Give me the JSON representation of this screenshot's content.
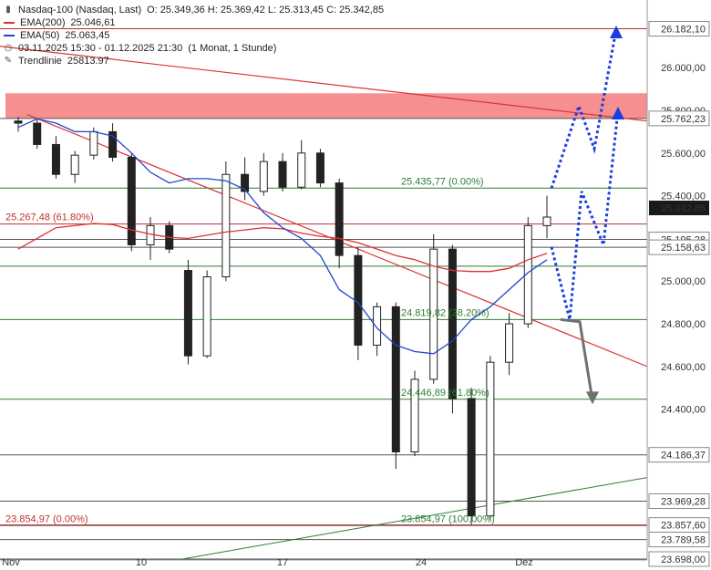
{
  "header": {
    "instrument": "Nasdaq-100 (Nasdaq, Last)",
    "ohlc": "O: 25.349,36  H: 25.369,42  L: 25.313,45  C: 25.342,85"
  },
  "legend": [
    {
      "label": "EMA(200)",
      "value": "25.046,61",
      "color": "#e03030",
      "icon": "line-swatch-icon"
    },
    {
      "label": "EMA(50)",
      "value": "25.063,45",
      "color": "#2244cc",
      "icon": "line-swatch-icon"
    },
    {
      "label": "03.11.2025 15:30 - 01.12.2025 21:30",
      "value": "(1 Monat, 1 Stunde)",
      "color": "#555555",
      "icon": "clock-icon"
    },
    {
      "label": "Trendlinie",
      "value": "25813.97",
      "color": "#555555",
      "icon": "pencil-icon"
    }
  ],
  "chart_data": {
    "type": "candlestick",
    "ylim": [
      23698,
      26240
    ],
    "x_ticks": [
      "Nov",
      "10",
      "17",
      "24",
      "Dez"
    ],
    "y_ticks": [
      "26.000,00",
      "25.800,00",
      "25.600,00",
      "25.400,00",
      "25.000,00",
      "24.800,00",
      "24.600,00",
      "24.400,00"
    ],
    "price_badge": "25.342,85",
    "horizontal_levels": [
      {
        "value": 26182.1,
        "label": "26.182,10",
        "color": "#b03030"
      },
      {
        "value": 25762.23,
        "label": "25.762,23",
        "color": "#555555"
      },
      {
        "value": 25435.77,
        "label": "",
        "color": "#2e7d32"
      },
      {
        "value": 25267.48,
        "label": "",
        "color": "#c03030"
      },
      {
        "value": 25195.28,
        "label": "25.195,28",
        "color": "#555555"
      },
      {
        "value": 25158.63,
        "label": "25.158,63",
        "color": "#555555"
      },
      {
        "value": 25070,
        "label": "",
        "color": "#2e7d32"
      },
      {
        "value": 24819.82,
        "label": "",
        "color": "#2e7d32"
      },
      {
        "value": 24446.89,
        "label": "",
        "color": "#2e7d32"
      },
      {
        "value": 24186.37,
        "label": "24.186,37",
        "color": "#555555"
      },
      {
        "value": 23969.28,
        "label": "23.969,28",
        "color": "#555555"
      },
      {
        "value": 23857.6,
        "label": "23.857,60",
        "color": "#555555"
      },
      {
        "value": 23854.97,
        "label": "",
        "color": "#c03030"
      },
      {
        "value": 23789.58,
        "label": "23.789,58",
        "color": "#555555"
      },
      {
        "value": 23698,
        "label": "23.698,00",
        "color": "#555555"
      }
    ],
    "annotations": [
      {
        "text": "25.435,77 (0.00%)",
        "color": "#2e7d32"
      },
      {
        "text": "25.267,48 (61.80%)",
        "color": "#c03030"
      },
      {
        "text": "24.819,82 (38.20%)",
        "color": "#2e7d32"
      },
      {
        "text": "24.446,89 (61.80%)",
        "color": "#2e7d32"
      },
      {
        "text": "23.854,97 (0.00%)",
        "color": "#c03030"
      },
      {
        "text": "23.854,97 (100.00%)",
        "color": "#2e7d32"
      }
    ],
    "resistance_zone": {
      "from": 25762,
      "to": 25880,
      "color": "#f47c7c"
    },
    "ema200": [
      25150,
      25200,
      25250,
      25260,
      25270,
      25265,
      25240,
      25220,
      25205,
      25200,
      25215,
      25230,
      25240,
      25250,
      25245,
      25225,
      25210,
      25200,
      25180,
      25150,
      25120,
      25100,
      25070,
      25050,
      25045,
      25045,
      25060,
      25100,
      25130
    ],
    "ema50": [
      25720,
      25760,
      25740,
      25700,
      25700,
      25680,
      25600,
      25510,
      25460,
      25480,
      25480,
      25470,
      25430,
      25320,
      25250,
      25200,
      25120,
      24960,
      24900,
      24780,
      24700,
      24670,
      24660,
      24720,
      24820,
      24880,
      24960,
      25040,
      25100
    ],
    "candles": [
      {
        "o": 25750,
        "h": 25770,
        "l": 25700,
        "c": 25740
      },
      {
        "o": 25740,
        "h": 25760,
        "l": 25620,
        "c": 25640
      },
      {
        "o": 25640,
        "h": 25680,
        "l": 25480,
        "c": 25500
      },
      {
        "o": 25500,
        "h": 25610,
        "l": 25460,
        "c": 25590
      },
      {
        "o": 25590,
        "h": 25720,
        "l": 25570,
        "c": 25700
      },
      {
        "o": 25700,
        "h": 25740,
        "l": 25560,
        "c": 25580
      },
      {
        "o": 25580,
        "h": 25600,
        "l": 25140,
        "c": 25170
      },
      {
        "o": 25170,
        "h": 25300,
        "l": 25100,
        "c": 25260
      },
      {
        "o": 25260,
        "h": 25280,
        "l": 25130,
        "c": 25150
      },
      {
        "o": 25050,
        "h": 25100,
        "l": 24610,
        "c": 24650
      },
      {
        "o": 24650,
        "h": 25050,
        "l": 24640,
        "c": 25020
      },
      {
        "o": 25020,
        "h": 25560,
        "l": 25000,
        "c": 25500
      },
      {
        "o": 25500,
        "h": 25580,
        "l": 25380,
        "c": 25420
      },
      {
        "o": 25420,
        "h": 25600,
        "l": 25400,
        "c": 25560
      },
      {
        "o": 25560,
        "h": 25600,
        "l": 25420,
        "c": 25440
      },
      {
        "o": 25440,
        "h": 25660,
        "l": 25430,
        "c": 25600
      },
      {
        "o": 25600,
        "h": 25620,
        "l": 25440,
        "c": 25460
      },
      {
        "o": 25460,
        "h": 25480,
        "l": 25060,
        "c": 25120
      },
      {
        "o": 25120,
        "h": 25160,
        "l": 24630,
        "c": 24700
      },
      {
        "o": 24700,
        "h": 24900,
        "l": 24650,
        "c": 24880
      },
      {
        "o": 24880,
        "h": 24900,
        "l": 24120,
        "c": 24200
      },
      {
        "o": 24200,
        "h": 24580,
        "l": 24180,
        "c": 24540
      },
      {
        "o": 24540,
        "h": 25220,
        "l": 24520,
        "c": 25150
      },
      {
        "o": 25150,
        "h": 25170,
        "l": 24380,
        "c": 24450
      },
      {
        "o": 24450,
        "h": 24500,
        "l": 23860,
        "c": 23900
      },
      {
        "o": 23900,
        "h": 24650,
        "l": 23880,
        "c": 24620
      },
      {
        "o": 24620,
        "h": 24850,
        "l": 24560,
        "c": 24800
      },
      {
        "o": 24800,
        "h": 25300,
        "l": 24780,
        "c": 25260
      },
      {
        "o": 25260,
        "h": 25400,
        "l": 25200,
        "c": 25300
      }
    ],
    "forecast_paths": [
      {
        "name": "",
        "color": "#1a3fe0",
        "points": [
          [
            0,
            25435
          ],
          [
            1,
            25820
          ],
          [
            2,
            25620
          ],
          [
            3,
            26180
          ]
        ]
      },
      {
        "name": "",
        "color": "#1a3fe0",
        "points": [
          [
            0,
            25160
          ],
          [
            1,
            24820
          ],
          [
            2,
            25420
          ],
          [
            3,
            25170
          ],
          [
            4,
            25800
          ]
        ]
      },
      {
        "name": "",
        "color": "#707070",
        "points": [
          [
            0,
            24820
          ],
          [
            1,
            24810
          ],
          [
            2,
            24440
          ]
        ]
      }
    ]
  }
}
